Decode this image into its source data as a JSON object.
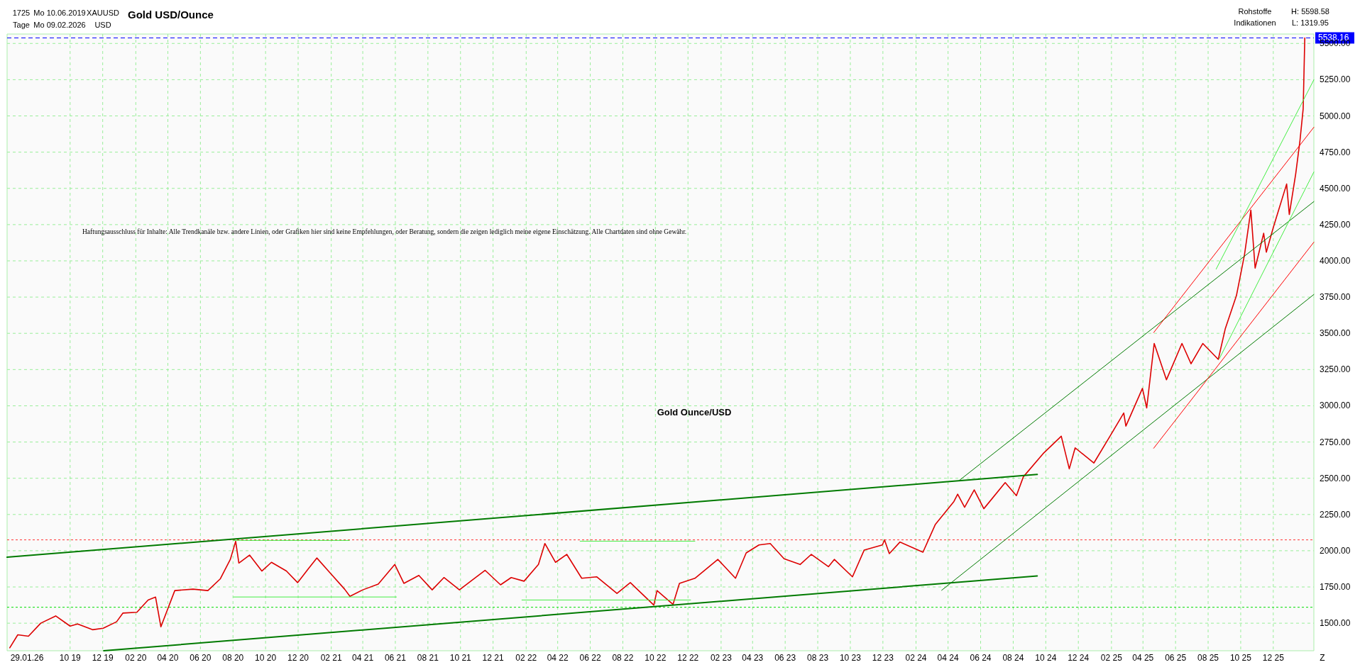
{
  "chart_data": {
    "type": "line",
    "title": "Gold USD/Ounce",
    "annotations": [
      "1725",
      "Tage",
      "Mo 10.06.2019",
      "Mo 09.02.2026",
      "XAUUSD",
      "USD",
      "Rohstoffe",
      "Indikationen",
      "H: 5598.58",
      "L: 1319.95",
      "Haftungsausschluss für Inhalte: Alle Trendkanäle bzw. andere Linien, oder Grafiken hier sind keine Empfehlungen, oder Beratung, sondern die zeigen lediglich meine eigene Einschätzung. Alle Chartdaten sind ohne Gewähr.",
      "Gold Ounce/USD",
      "29.01.26",
      "Z"
    ],
    "xlim": [
      "2019-06-05",
      "2026-02-15"
    ],
    "xticks": [
      {
        "value": "2019-10-01",
        "label": "10 19"
      },
      {
        "value": "2019-12-01",
        "label": "12 19"
      },
      {
        "value": "2020-02-01",
        "label": "02 20"
      },
      {
        "value": "2020-04-01",
        "label": "04 20"
      },
      {
        "value": "2020-06-01",
        "label": "06 20"
      },
      {
        "value": "2020-08-01",
        "label": "08 20"
      },
      {
        "value": "2020-10-01",
        "label": "10 20"
      },
      {
        "value": "2020-12-01",
        "label": "12 20"
      },
      {
        "value": "2021-02-01",
        "label": "02 21"
      },
      {
        "value": "2021-04-01",
        "label": "04 21"
      },
      {
        "value": "2021-06-01",
        "label": "06 21"
      },
      {
        "value": "2021-08-01",
        "label": "08 21"
      },
      {
        "value": "2021-10-01",
        "label": "10 21"
      },
      {
        "value": "2021-12-01",
        "label": "12 21"
      },
      {
        "value": "2022-02-01",
        "label": "02 22"
      },
      {
        "value": "2022-04-01",
        "label": "04 22"
      },
      {
        "value": "2022-06-01",
        "label": "06 22"
      },
      {
        "value": "2022-08-01",
        "label": "08 22"
      },
      {
        "value": "2022-10-01",
        "label": "10 22"
      },
      {
        "value": "2022-12-01",
        "label": "12 22"
      },
      {
        "value": "2023-02-01",
        "label": "02 23"
      },
      {
        "value": "2023-04-01",
        "label": "04 23"
      },
      {
        "value": "2023-06-01",
        "label": "06 23"
      },
      {
        "value": "2023-08-01",
        "label": "08 23"
      },
      {
        "value": "2023-10-01",
        "label": "10 23"
      },
      {
        "value": "2023-12-01",
        "label": "12 23"
      },
      {
        "value": "2024-02-01",
        "label": "02 24"
      },
      {
        "value": "2024-04-01",
        "label": "04 24"
      },
      {
        "value": "2024-06-01",
        "label": "06 24"
      },
      {
        "value": "2024-08-01",
        "label": "08 24"
      },
      {
        "value": "2024-10-01",
        "label": "10 24"
      },
      {
        "value": "2024-12-01",
        "label": "12 24"
      },
      {
        "value": "2025-02-01",
        "label": "02 25"
      },
      {
        "value": "2025-04-01",
        "label": "04 25"
      },
      {
        "value": "2025-06-01",
        "label": "06 25"
      },
      {
        "value": "2025-08-01",
        "label": "08 25"
      },
      {
        "value": "2025-10-01",
        "label": "10 25"
      },
      {
        "value": "2025-12-01",
        "label": "12 25"
      }
    ],
    "ylim": [
      1310,
      5565
    ],
    "yticks": [
      {
        "value": 1500,
        "label": "1500.00"
      },
      {
        "value": 1750,
        "label": "1750.00"
      },
      {
        "value": 2000,
        "label": "2000.00"
      },
      {
        "value": 2250,
        "label": "2250.00"
      },
      {
        "value": 2500,
        "label": "2500.00"
      },
      {
        "value": 2750,
        "label": "2750.00"
      },
      {
        "value": 3000,
        "label": "3000.00"
      },
      {
        "value": 3250,
        "label": "3250.00"
      },
      {
        "value": 3500,
        "label": "3500.00"
      },
      {
        "value": 3750,
        "label": "3750.00"
      },
      {
        "value": 4000,
        "label": "4000.00"
      },
      {
        "value": 4250,
        "label": "4250.00"
      },
      {
        "value": 4500,
        "label": "4500.00"
      },
      {
        "value": 4750,
        "label": "4750.00"
      },
      {
        "value": 5000,
        "label": "5000.00"
      },
      {
        "value": 5250,
        "label": "5250.00"
      },
      {
        "value": 5500,
        "label": "5500.00"
      }
    ],
    "grid": true,
    "ref_lines": [
      {
        "axis": "y",
        "value": 5538.16,
        "label": "5538.16",
        "color": "#0000ff",
        "line_style": "dashed"
      },
      {
        "axis": "y",
        "value": 2075,
        "color": "#ff3333",
        "line_style": "dotted"
      },
      {
        "axis": "y",
        "value": 1610,
        "color": "#00dd00",
        "line_style": "dotted"
      }
    ],
    "series": [
      {
        "color": "#dd0000",
        "x": [
          "2019-06-10",
          "2019-06-25",
          "2019-07-15",
          "2019-08-07",
          "2019-09-04",
          "2019-10-01",
          "2019-10-15",
          "2019-11-12",
          "2019-12-02",
          "2019-12-27",
          "2020-01-08",
          "2020-02-03",
          "2020-02-24",
          "2020-03-09",
          "2020-03-19",
          "2020-04-14",
          "2020-05-18",
          "2020-06-15",
          "2020-07-08",
          "2020-07-27",
          "2020-08-06",
          "2020-08-12",
          "2020-09-01",
          "2020-09-24",
          "2020-10-12",
          "2020-11-09",
          "2020-11-30",
          "2020-12-21",
          "2021-01-05",
          "2021-01-29",
          "2021-02-26",
          "2021-03-08",
          "2021-04-01",
          "2021-04-30",
          "2021-05-31",
          "2021-06-17",
          "2021-07-15",
          "2021-08-09",
          "2021-08-31",
          "2021-09-29",
          "2021-10-22",
          "2021-11-16",
          "2021-12-15",
          "2022-01-04",
          "2022-01-28",
          "2022-02-24",
          "2022-03-08",
          "2022-03-28",
          "2022-04-18",
          "2022-05-16",
          "2022-06-13",
          "2022-07-21",
          "2022-08-15",
          "2022-09-28",
          "2022-10-04",
          "2022-11-03",
          "2022-11-15",
          "2022-12-14",
          "2023-01-26",
          "2023-02-28",
          "2023-03-20",
          "2023-04-13",
          "2023-05-04",
          "2023-05-30",
          "2023-06-29",
          "2023-07-20",
          "2023-08-21",
          "2023-09-01",
          "2023-10-05",
          "2023-10-27",
          "2023-11-30",
          "2023-12-04",
          "2023-12-13",
          "2024-01-02",
          "2024-02-14",
          "2024-03-08",
          "2024-04-12",
          "2024-04-19",
          "2024-05-02",
          "2024-05-20",
          "2024-06-07",
          "2024-07-17",
          "2024-08-07",
          "2024-08-20",
          "2024-09-26",
          "2024-10-30",
          "2024-11-14",
          "2024-11-25",
          "2024-12-30",
          "2025-01-30",
          "2025-02-24",
          "2025-02-28",
          "2025-03-31",
          "2025-04-08",
          "2025-04-22",
          "2025-05-15",
          "2025-06-13",
          "2025-06-30",
          "2025-07-22",
          "2025-08-20",
          "2025-09-02",
          "2025-09-23",
          "2025-10-08",
          "2025-10-20",
          "2025-10-28",
          "2025-11-13",
          "2025-11-18",
          "2025-12-01",
          "2025-12-26",
          "2025-12-31",
          "2026-01-12",
          "2026-01-20",
          "2026-01-26",
          "2026-01-29"
        ],
        "values": [
          1330,
          1420,
          1410,
          1500,
          1550,
          1480,
          1495,
          1455,
          1465,
          1510,
          1570,
          1575,
          1660,
          1680,
          1475,
          1725,
          1735,
          1725,
          1805,
          1940,
          2065,
          1915,
          1970,
          1860,
          1920,
          1860,
          1780,
          1880,
          1950,
          1850,
          1735,
          1685,
          1730,
          1770,
          1905,
          1775,
          1830,
          1730,
          1815,
          1730,
          1795,
          1865,
          1765,
          1815,
          1790,
          1905,
          2050,
          1920,
          1975,
          1810,
          1820,
          1705,
          1780,
          1625,
          1725,
          1630,
          1775,
          1810,
          1940,
          1810,
          1985,
          2040,
          2050,
          1945,
          1905,
          1975,
          1890,
          1940,
          1820,
          2005,
          2040,
          2075,
          1980,
          2060,
          1990,
          2180,
          2340,
          2390,
          2300,
          2420,
          2290,
          2470,
          2380,
          2510,
          2670,
          2790,
          2565,
          2710,
          2605,
          2795,
          2950,
          2860,
          3120,
          2985,
          3430,
          3180,
          3430,
          3290,
          3430,
          3320,
          3530,
          3760,
          4040,
          4350,
          3950,
          4190,
          4060,
          4230,
          4530,
          4320,
          4600,
          4830,
          5050,
          5538
        ]
      },
      {
        "type": "line",
        "color": "#007a00",
        "x": [
          "2019-06-05",
          "2024-09-15"
        ],
        "values": [
          1955,
          2526
        ]
      },
      {
        "type": "line",
        "color": "#007a00",
        "x": [
          "2019-12-03",
          "2024-09-15"
        ],
        "values": [
          1310,
          1826
        ]
      },
      {
        "type": "line",
        "color": "#007a00",
        "x": [
          "2024-03-20",
          "2026-02-15"
        ],
        "values": [
          1727,
          3768
        ]
      },
      {
        "type": "line",
        "color": "#007a00",
        "x": [
          "2024-04-22",
          "2026-02-15"
        ],
        "values": [
          2485,
          4409
        ]
      },
      {
        "type": "line",
        "color": "#ff0000",
        "x": [
          "2025-04-21",
          "2026-02-15"
        ],
        "values": [
          3505,
          4922
        ]
      },
      {
        "type": "line",
        "color": "#ff0000",
        "x": [
          "2025-04-21",
          "2026-02-15"
        ],
        "values": [
          2707,
          4129
        ]
      },
      {
        "type": "line",
        "color": "#44ee44",
        "x": [
          "2025-08-16",
          "2026-02-15"
        ],
        "values": [
          3943,
          5249
        ]
      },
      {
        "type": "line",
        "color": "#44ee44",
        "x": [
          "2025-08-22",
          "2026-02-15"
        ],
        "values": [
          3325,
          4613
        ]
      },
      {
        "type": "line",
        "color": "#44ee44",
        "x": [
          "2020-08-02",
          "2021-03-07"
        ],
        "values": [
          2071,
          2071
        ]
      },
      {
        "type": "line",
        "color": "#44ee44",
        "x": [
          "2022-05-13",
          "2022-12-14"
        ],
        "values": [
          2066,
          2066
        ]
      },
      {
        "type": "line",
        "color": "#44ee44",
        "x": [
          "2020-08-02",
          "2021-06-03"
        ],
        "values": [
          1681,
          1681
        ]
      },
      {
        "type": "line",
        "color": "#44ee44",
        "x": [
          "2022-01-24",
          "2022-12-06"
        ],
        "values": [
          1660,
          1660
        ]
      }
    ]
  }
}
